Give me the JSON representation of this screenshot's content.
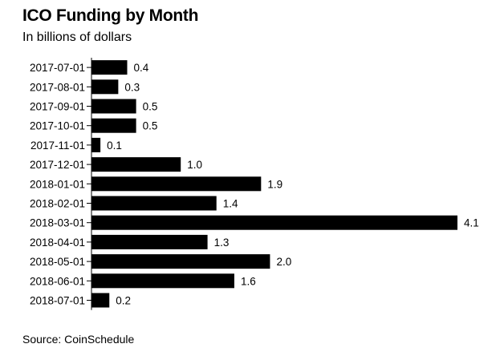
{
  "header": {
    "title": "ICO Funding by Month",
    "subtitle": "In billions of dollars"
  },
  "footer": {
    "source": "Source: CoinSchedule"
  },
  "chart_data": {
    "type": "bar",
    "orientation": "horizontal",
    "title": "ICO Funding by Month",
    "subtitle": "In billions of dollars",
    "categories": [
      "2017-07-01",
      "2017-08-01",
      "2017-09-01",
      "2017-10-01",
      "2017-11-01",
      "2017-12-01",
      "2018-01-01",
      "2018-02-01",
      "2018-03-01",
      "2018-04-01",
      "2018-05-01",
      "2018-06-01",
      "2018-07-01"
    ],
    "values": [
      0.4,
      0.3,
      0.5,
      0.5,
      0.1,
      1.0,
      1.9,
      1.4,
      4.1,
      1.3,
      2.0,
      1.6,
      0.2
    ],
    "value_labels": [
      "0.4",
      "0.3",
      "0.5",
      "0.5",
      "0.1",
      "1.0",
      "1.9",
      "1.4",
      "4.1",
      "1.3",
      "2.0",
      "1.6",
      "0.2"
    ],
    "xlim": [
      0,
      4.1
    ],
    "bar_color": "#000000",
    "grid": false,
    "legend": "none",
    "source": "Source: CoinSchedule"
  }
}
